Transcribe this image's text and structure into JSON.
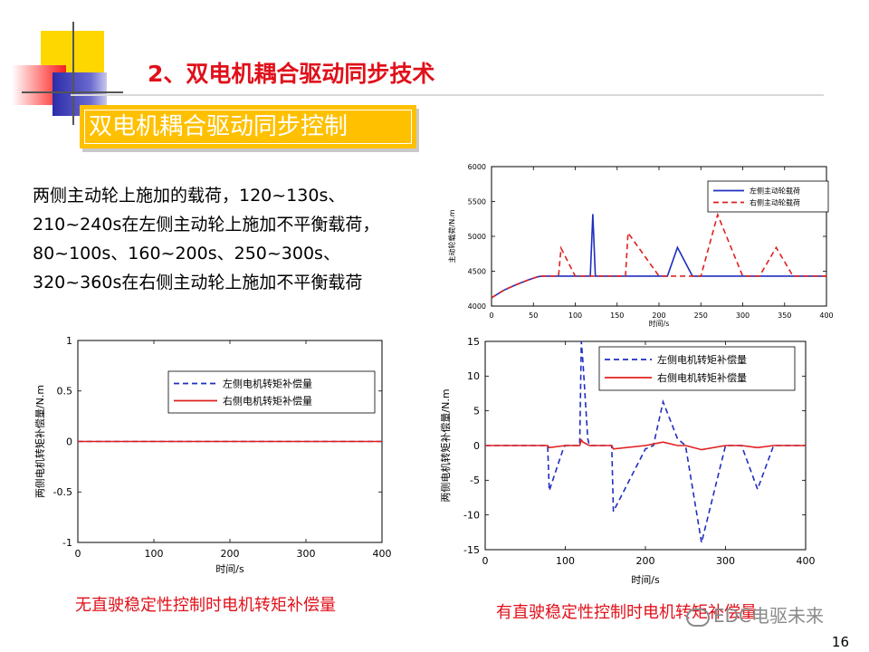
{
  "slide": {
    "title": "2、双电机耦合驱动同步技术",
    "subtitle": "双电机耦合驱动同步控制",
    "description": [
      "两侧主动轮上施加的载荷，120~130s、",
      "210~240s在左侧主动轮上施加不平衡载荷，",
      "80~100s、160~200s、250~300s、",
      "320~360s在右侧主动轮上施加不平衡载荷"
    ],
    "caption_left": "无直驶稳定性控制时电机转矩补偿量",
    "caption_right": "有直驶稳定性控制时电机转矩补偿量",
    "page_number": "16",
    "watermark": "EDC电驱未来"
  },
  "colors": {
    "title_red": "#e0101a",
    "subtitle_bg": "#ffc000",
    "left_series": "#1f2fbf",
    "right_series": "#e02020"
  },
  "chart_data": [
    {
      "id": "load",
      "type": "line",
      "ylabel": "主动轮载荷/N.m",
      "xlabel": "时间/s",
      "xlim": [
        0,
        400
      ],
      "ylim": [
        4000,
        6000
      ],
      "xticks": [
        0,
        50,
        100,
        150,
        200,
        250,
        300,
        350,
        400
      ],
      "yticks": [
        4000,
        4500,
        5000,
        5500,
        6000
      ],
      "legend_position": "top-right",
      "series": [
        {
          "name": "左侧主动轮载荷",
          "color": "#1f2fbf",
          "style": "solid",
          "x": [
            0,
            15,
            30,
            45,
            55,
            60,
            118,
            121,
            124,
            130,
            210,
            222,
            240,
            400
          ],
          "y": [
            4120,
            4230,
            4310,
            4380,
            4420,
            4430,
            4430,
            5320,
            4430,
            4430,
            4430,
            4840,
            4430,
            4430
          ]
        },
        {
          "name": "右侧主动轮载荷",
          "color": "#e02020",
          "style": "dashed",
          "x": [
            0,
            15,
            30,
            45,
            55,
            60,
            80,
            83,
            100,
            160,
            163,
            200,
            250,
            270,
            300,
            320,
            340,
            360,
            400
          ],
          "y": [
            4120,
            4230,
            4310,
            4380,
            4420,
            4430,
            4430,
            4830,
            4430,
            4430,
            5050,
            4430,
            4430,
            5310,
            4430,
            4430,
            4840,
            4430,
            4430
          ]
        }
      ]
    },
    {
      "id": "comp_without",
      "type": "line",
      "ylabel": "两侧电机转矩补偿量/N.m",
      "xlabel": "时间/s",
      "xlim": [
        0,
        400
      ],
      "ylim": [
        -1,
        1
      ],
      "xticks": [
        0,
        100,
        200,
        300,
        400
      ],
      "yticks": [
        -1,
        -0.5,
        0,
        0.5,
        1
      ],
      "legend_position": "top-right",
      "series": [
        {
          "name": "左侧电机转矩补偿量",
          "color": "#1f2fbf",
          "style": "dashed",
          "x": [
            0,
            400
          ],
          "y": [
            0,
            0
          ]
        },
        {
          "name": "右侧电机转矩补偿量",
          "color": "#e02020",
          "style": "solid",
          "x": [
            0,
            400
          ],
          "y": [
            0,
            0
          ]
        }
      ]
    },
    {
      "id": "comp_with",
      "type": "line",
      "ylabel": "两侧电机转矩补偿量/N.m",
      "xlabel": "时间/s",
      "xlim": [
        0,
        400
      ],
      "ylim": [
        -15,
        15
      ],
      "xticks": [
        0,
        100,
        200,
        300,
        400
      ],
      "yticks": [
        -15,
        -10,
        -5,
        0,
        5,
        10,
        15
      ],
      "legend_position": "top-right",
      "series": [
        {
          "name": "左侧电机转矩补偿量",
          "color": "#1f2fbf",
          "style": "dashed",
          "x": [
            0,
            78,
            80,
            90,
            98,
            100,
            118,
            120,
            122,
            128,
            130,
            158,
            160,
            180,
            200,
            210,
            222,
            240,
            250,
            270,
            300,
            320,
            340,
            360,
            400
          ],
          "y": [
            0,
            0,
            -6.5,
            -3,
            -0.3,
            0,
            0,
            15,
            12,
            1,
            0,
            0,
            -9.5,
            -5,
            -0.5,
            0,
            6.3,
            1,
            0,
            -14,
            0,
            0,
            -6.3,
            0,
            0
          ]
        },
        {
          "name": "右侧电机转矩补偿量",
          "color": "#e02020",
          "style": "solid",
          "x": [
            0,
            78,
            80,
            100,
            118,
            120,
            122,
            130,
            158,
            160,
            200,
            222,
            240,
            250,
            270,
            300,
            320,
            340,
            360,
            400
          ],
          "y": [
            0,
            0,
            -0.3,
            0,
            0,
            0.8,
            0.5,
            0,
            0,
            -0.5,
            0,
            0.5,
            0,
            0,
            -0.6,
            0,
            0,
            -0.3,
            0,
            0
          ]
        }
      ]
    }
  ]
}
